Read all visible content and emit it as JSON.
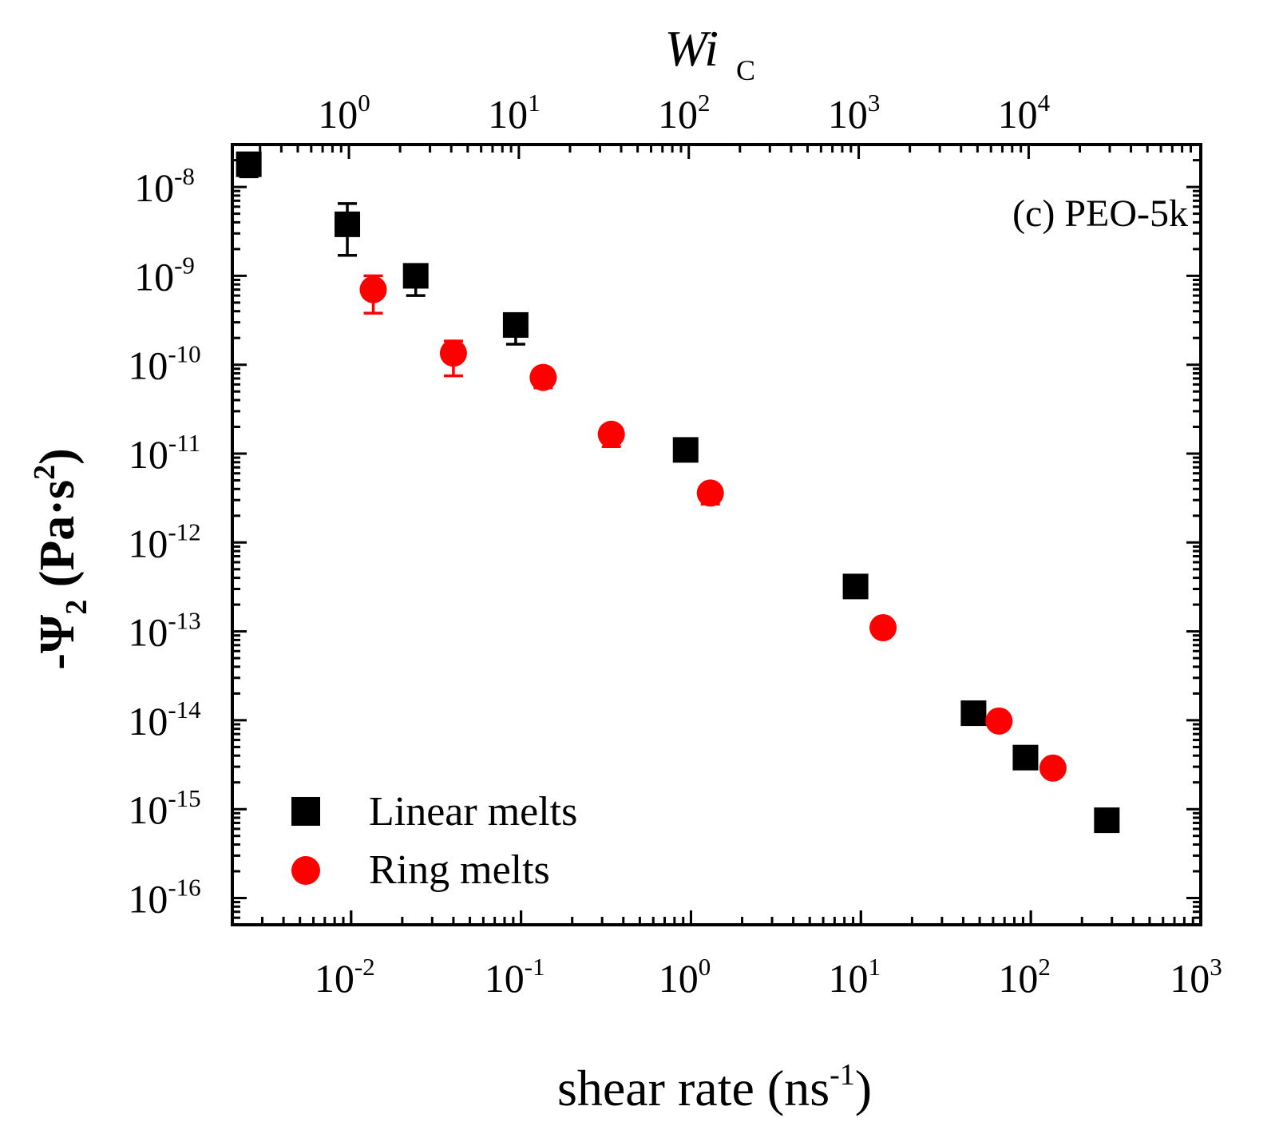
{
  "chart_data": {
    "type": "scatter",
    "panel_label": "(c) PEO-5k",
    "xlabel": {
      "base": "shear rate (ns",
      "sup": "-1",
      "tail": ")"
    },
    "ylabel": {
      "pre": "-Ψ",
      "sub": "2",
      "mid": " (Pa·s",
      "sup": "2",
      "tail": ")"
    },
    "top_axis_label": {
      "main": "Wi",
      "sub": "C"
    },
    "x_scale": "log",
    "y_scale": "log",
    "xlim": [
      0.002,
      1000
    ],
    "ylim": [
      5e-17,
      3e-08
    ],
    "x_ticks": [
      {
        "value": 0.01,
        "base": "10",
        "exp": "-2"
      },
      {
        "value": 0.1,
        "base": "10",
        "exp": "-1"
      },
      {
        "value": 1,
        "base": "10",
        "exp": "0"
      },
      {
        "value": 10,
        "base": "10",
        "exp": "1"
      },
      {
        "value": 100,
        "base": "10",
        "exp": "2"
      },
      {
        "value": 1000,
        "base": "10",
        "exp": "3"
      }
    ],
    "y_ticks": [
      {
        "value": 1e-08,
        "base": "10",
        "exp": "-8"
      },
      {
        "value": 1e-09,
        "base": "10",
        "exp": "-9"
      },
      {
        "value": 1e-10,
        "base": "10",
        "exp": "-10"
      },
      {
        "value": 1e-11,
        "base": "10",
        "exp": "-11"
      },
      {
        "value": 1e-12,
        "base": "10",
        "exp": "-12"
      },
      {
        "value": 1e-13,
        "base": "10",
        "exp": "-13"
      },
      {
        "value": 1e-14,
        "base": "10",
        "exp": "-14"
      },
      {
        "value": 1e-15,
        "base": "10",
        "exp": "-15"
      },
      {
        "value": 1e-16,
        "base": "10",
        "exp": "-16"
      }
    ],
    "top_x_ticks": [
      {
        "wi": 1,
        "base": "10",
        "exp": "0"
      },
      {
        "wi": 10,
        "base": "10",
        "exp": "1"
      },
      {
        "wi": 100,
        "base": "10",
        "exp": "2"
      },
      {
        "wi": 1000,
        "base": "10",
        "exp": "3"
      },
      {
        "wi": 10000,
        "base": "10",
        "exp": "4"
      }
    ],
    "wi_per_shear_rate": 103,
    "series": [
      {
        "name": "Linear melts",
        "marker": "square",
        "color": "#000000",
        "x": [
          0.0025,
          0.0095,
          0.024,
          0.093,
          0.93,
          9.3,
          46,
          93,
          280
        ],
        "y": [
          1.8e-08,
          3.8e-09,
          1e-09,
          2.8e-10,
          1.1e-11,
          3.2e-13,
          1.2e-14,
          3.8e-15,
          7.5e-16
        ],
        "y_lower": [
          1.3e-08,
          1.7e-09,
          6e-10,
          1.7e-10,
          8.5e-12,
          2.6e-13,
          9.5e-15,
          3.1e-15,
          6e-16
        ],
        "y_upper": [
          2.1e-08,
          6.5e-09,
          1.3e-09,
          3.2e-10,
          1.2e-11,
          3.4e-13,
          1.3e-14,
          4e-15,
          8e-16
        ]
      },
      {
        "name": "Ring melts",
        "marker": "circle",
        "color": "#ff0000",
        "x": [
          0.0135,
          0.04,
          0.135,
          0.34,
          1.3,
          13.5,
          65,
          135
        ],
        "y": [
          7e-10,
          1.35e-10,
          7.2e-11,
          1.65e-11,
          3.6e-12,
          1.1e-13,
          9.8e-15,
          2.9e-15
        ],
        "y_lower": [
          3.8e-10,
          7.5e-11,
          5.5e-11,
          1.2e-11,
          2.7e-12,
          9e-14,
          8.5e-15,
          2.6e-15
        ],
        "y_upper": [
          1e-09,
          1.85e-10,
          8.5e-11,
          2e-11,
          4.2e-12,
          1.2e-13,
          1.05e-14,
          3.1e-15
        ]
      }
    ],
    "legend": {
      "position": "bottom-left"
    }
  }
}
